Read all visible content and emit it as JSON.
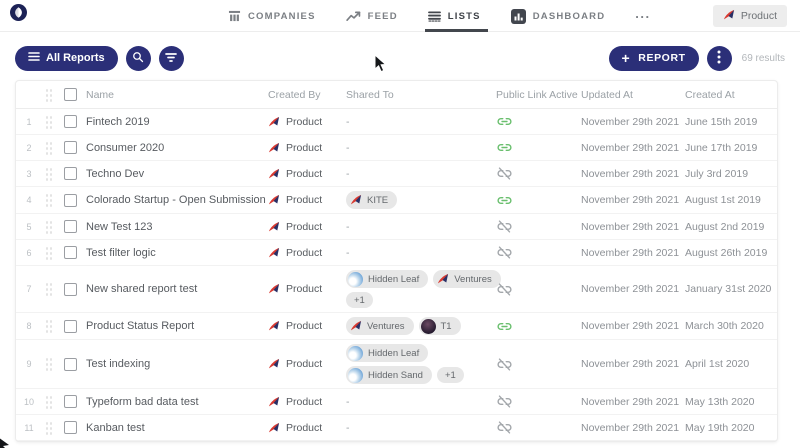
{
  "nav": {
    "items": [
      {
        "label": "COMPANIES",
        "icon": "columns-icon",
        "active": false
      },
      {
        "label": "FEED",
        "icon": "trend-icon",
        "active": false
      },
      {
        "label": "LISTS",
        "icon": "list-icon",
        "active": true
      },
      {
        "label": "DASHBOARD",
        "icon": "dashboard-icon",
        "active": false
      }
    ],
    "more_label": "...",
    "user_badge": {
      "label": "Product",
      "icon": "rocket-icon"
    }
  },
  "toolbar": {
    "all_reports_label": "All Reports",
    "report_plus": "+",
    "report_label": "REPORT",
    "results_text": "69 results"
  },
  "table": {
    "columns": [
      "Name",
      "Created By",
      "Shared To",
      "Public Link Active",
      "Updated At",
      "Created At"
    ],
    "empty_shared_placeholder": "-",
    "rows": [
      {
        "num": "1",
        "name": "Fintech 2019",
        "created_by": "Product",
        "shared_to": [],
        "public_link": "link-on",
        "updated_at": "November 29th 2021",
        "created_at": "June 15th 2019"
      },
      {
        "num": "2",
        "name": "Consumer 2020",
        "created_by": "Product",
        "shared_to": [],
        "public_link": "link-on",
        "updated_at": "November 29th 2021",
        "created_at": "June 17th 2019"
      },
      {
        "num": "3",
        "name": "Techno Dev",
        "created_by": "Product",
        "shared_to": [],
        "public_link": "link-off",
        "updated_at": "November 29th 2021",
        "created_at": "July 3rd 2019"
      },
      {
        "num": "4",
        "name": "Colorado Startup - Open Submission",
        "created_by": "Product",
        "shared_to": [
          [
            {
              "label": "KITE",
              "avatar": "rocket"
            }
          ]
        ],
        "public_link": "link-on",
        "updated_at": "November 29th 2021",
        "created_at": "August 1st 2019"
      },
      {
        "num": "5",
        "name": "New Test 123",
        "created_by": "Product",
        "shared_to": [],
        "public_link": "link-off",
        "updated_at": "November 29th 2021",
        "created_at": "August 2nd 2019"
      },
      {
        "num": "6",
        "name": "Test filter logic",
        "created_by": "Product",
        "shared_to": [],
        "public_link": "link-off",
        "updated_at": "November 29th 2021",
        "created_at": "August 26th 2019"
      },
      {
        "num": "7",
        "name": "New shared report test",
        "created_by": "Product",
        "shared_to": [
          [
            {
              "label": "Hidden Leaf",
              "avatar": "globe"
            },
            {
              "label": "Ventures",
              "avatar": "rocket"
            }
          ],
          [
            {
              "label": "+1",
              "avatar": "none"
            }
          ]
        ],
        "public_link": "link-off",
        "updated_at": "November 29th 2021",
        "created_at": "January 31st 2020"
      },
      {
        "num": "8",
        "name": "Product Status Report",
        "created_by": "Product",
        "shared_to": [
          [
            {
              "label": "Ventures",
              "avatar": "rocket"
            },
            {
              "label": "T1",
              "avatar": "dark"
            }
          ]
        ],
        "public_link": "link-on",
        "updated_at": "November 29th 2021",
        "created_at": "March 30th 2020"
      },
      {
        "num": "9",
        "name": "Test indexing",
        "created_by": "Product",
        "shared_to": [
          [
            {
              "label": "Hidden Leaf",
              "avatar": "globe"
            }
          ],
          [
            {
              "label": "Hidden Sand",
              "avatar": "globe"
            },
            {
              "label": "+1",
              "avatar": "none"
            }
          ]
        ],
        "public_link": "link-off",
        "updated_at": "November 29th 2021",
        "created_at": "April 1st 2020"
      },
      {
        "num": "10",
        "name": "Typeform bad data test",
        "created_by": "Product",
        "shared_to": [],
        "public_link": "link-off",
        "updated_at": "November 29th 2021",
        "created_at": "May 13th 2020"
      },
      {
        "num": "11",
        "name": "Kanban test",
        "created_by": "Product",
        "shared_to": [],
        "public_link": "link-off",
        "updated_at": "November 29th 2021",
        "created_at": "May 19th 2020"
      }
    ]
  },
  "colors": {
    "primary": "#2b2f78",
    "link_active": "#6abf6e",
    "link_inactive": "#a3a7ab",
    "rocket_red": "#d93a31",
    "rocket_navy": "#2a3066"
  }
}
